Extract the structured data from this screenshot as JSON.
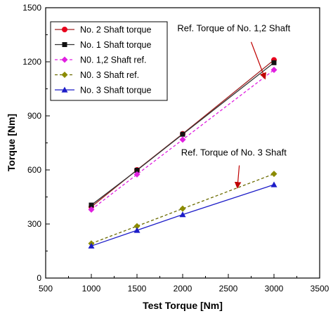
{
  "chart_data": {
    "type": "line",
    "xlabel": "Test Torque [Nm]",
    "ylabel": "Torque [Nm]",
    "xlim": [
      500,
      3500
    ],
    "ylim": [
      0,
      1500
    ],
    "xticks": [
      500,
      1000,
      1500,
      2000,
      2500,
      3000,
      3500
    ],
    "yticks": [
      0,
      300,
      600,
      900,
      1200,
      1500
    ],
    "grid": false,
    "legend_position": "top-left",
    "series": [
      {
        "name": "No. 2 Shaft torque",
        "x": [
          1000,
          1500,
          2000,
          3000
        ],
        "values": [
          395,
          600,
          800,
          1210
        ],
        "color": "#e8001c",
        "marker": "circle",
        "line": "solid",
        "line_color": "#a02020"
      },
      {
        "name": "No. 1 Shaft torque",
        "x": [
          1000,
          1500,
          2000,
          3000
        ],
        "values": [
          405,
          598,
          798,
          1195
        ],
        "color": "#111111",
        "marker": "square",
        "line": "solid",
        "line_color": "#333333"
      },
      {
        "name": "N0. 1,2 Shaft ref.",
        "x": [
          1000,
          1500,
          2000,
          3000
        ],
        "values": [
          380,
          575,
          768,
          1155
        ],
        "color": "#e020e0",
        "marker": "diamond",
        "line": "dashed",
        "line_color": "#e020e0"
      },
      {
        "name": "N0. 3 Shaft ref.",
        "x": [
          1000,
          1500,
          2000,
          3000
        ],
        "values": [
          192,
          288,
          385,
          578
        ],
        "color": "#8b8b00",
        "marker": "diamond",
        "line": "dashed",
        "line_color": "#6b6b00"
      },
      {
        "name": "No. 3 Shaft torque",
        "x": [
          1000,
          1500,
          2000,
          3000
        ],
        "values": [
          178,
          265,
          352,
          518
        ],
        "color": "#1c1cc8",
        "marker": "triangle",
        "line": "solid",
        "line_color": "#1c1cc8"
      }
    ],
    "annotations": [
      {
        "text": "Ref. Torque of No. 1,2 Shaft",
        "label_x": 2560,
        "label_y": 1370,
        "arrow_from": [
          2750,
          1310
        ],
        "arrow_to": [
          2900,
          1110
        ],
        "arrow_color": "#c00000"
      },
      {
        "text": "Ref. Torque of No. 3 Shaft",
        "label_x": 2560,
        "label_y": 680,
        "arrow_from": [
          2620,
          625
        ],
        "arrow_to": [
          2600,
          505
        ],
        "arrow_color": "#c00000"
      }
    ]
  }
}
